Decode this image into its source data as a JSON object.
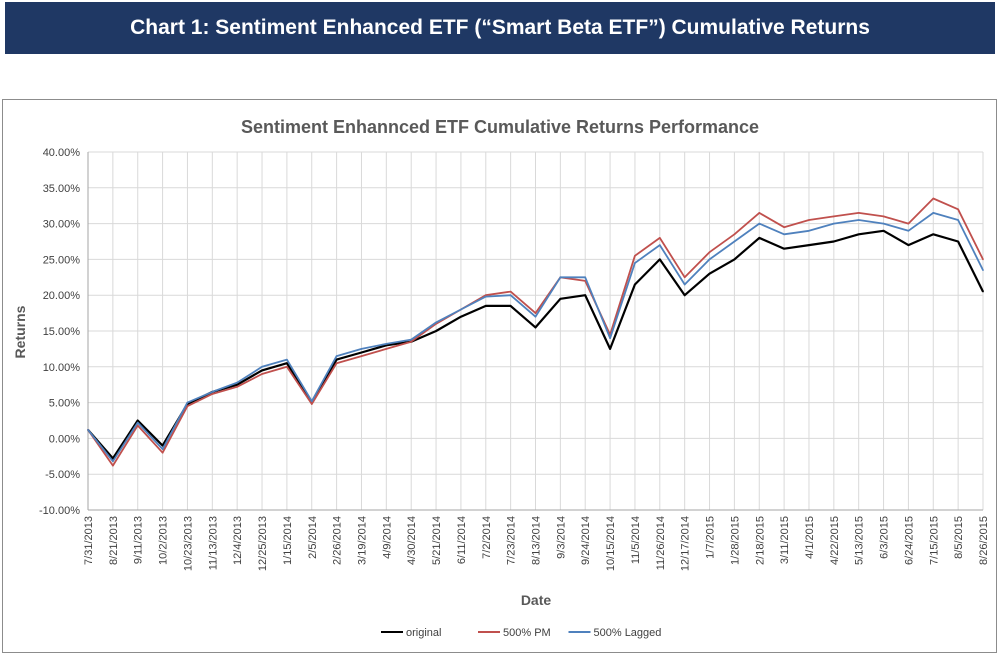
{
  "banner": {
    "title": "Chart 1: Sentiment Enhanced ETF (“Smart Beta ETF”) Cumulative Returns"
  },
  "chart_data": {
    "type": "line",
    "title": "Sentiment Enhannced ETF Cumulative Returns Performance",
    "xlabel": "Date",
    "ylabel": "Returns",
    "ylim": [
      -10,
      40
    ],
    "y_unit": "%",
    "yticks": [
      "40.00%",
      "35.00%",
      "30.00%",
      "25.00%",
      "20.00%",
      "15.00%",
      "10.00%",
      "5.00%",
      "0.00%",
      "-5.00%",
      "-10.00%"
    ],
    "grid": true,
    "legend_position": "bottom-center",
    "x": [
      "7/31/2013",
      "8/21/2013",
      "9/11/2013",
      "10/2/2013",
      "10/23/2013",
      "11/13/2013",
      "12/4/2013",
      "12/25/2013",
      "1/15/2014",
      "2/5/2014",
      "2/26/2014",
      "3/19/2014",
      "4/9/2014",
      "4/30/2014",
      "5/21/2014",
      "6/11/2014",
      "7/2/2014",
      "7/23/2014",
      "8/13/2014",
      "9/3/2014",
      "9/24/2014",
      "10/15/2014",
      "11/5/2014",
      "11/26/2014",
      "12/17/2014",
      "1/7/2015",
      "1/28/2015",
      "2/18/2015",
      "3/11/2015",
      "4/1/2015",
      "4/22/2015",
      "5/13/2015",
      "6/3/2015",
      "6/24/2015",
      "7/15/2015",
      "8/5/2015",
      "8/26/2015"
    ],
    "series": [
      {
        "name": "original",
        "color": "#000000",
        "values": [
          1.2,
          -2.8,
          2.5,
          -1.0,
          4.8,
          6.5,
          7.5,
          9.5,
          10.5,
          5.0,
          11.0,
          12.0,
          13.0,
          13.5,
          15.0,
          17.0,
          18.5,
          18.5,
          15.5,
          19.5,
          20.0,
          12.5,
          21.5,
          25.0,
          20.0,
          23.0,
          25.0,
          28.0,
          26.5,
          27.0,
          27.5,
          28.5,
          29.0,
          27.0,
          28.5,
          27.5,
          20.5
        ]
      },
      {
        "name": "500% PM",
        "color": "#c0504d",
        "values": [
          1.2,
          -3.8,
          1.8,
          -2.0,
          4.5,
          6.2,
          7.2,
          9.0,
          10.0,
          4.8,
          10.5,
          11.5,
          12.5,
          13.5,
          16.0,
          18.0,
          20.0,
          20.5,
          17.5,
          22.5,
          22.0,
          14.5,
          25.5,
          28.0,
          22.5,
          26.0,
          28.5,
          31.5,
          29.5,
          30.5,
          31.0,
          31.5,
          31.0,
          30.0,
          33.5,
          32.0,
          25.0
        ]
      },
      {
        "name": "500% Lagged",
        "color": "#4f81bd",
        "values": [
          1.2,
          -3.2,
          2.2,
          -1.5,
          5.0,
          6.5,
          7.8,
          10.0,
          11.0,
          5.2,
          11.5,
          12.5,
          13.2,
          13.8,
          16.2,
          18.0,
          19.8,
          20.0,
          17.0,
          22.5,
          22.5,
          14.0,
          24.5,
          27.0,
          21.5,
          25.0,
          27.5,
          30.0,
          28.5,
          29.0,
          30.0,
          30.5,
          30.0,
          29.0,
          31.5,
          30.5,
          23.5
        ]
      }
    ]
  }
}
